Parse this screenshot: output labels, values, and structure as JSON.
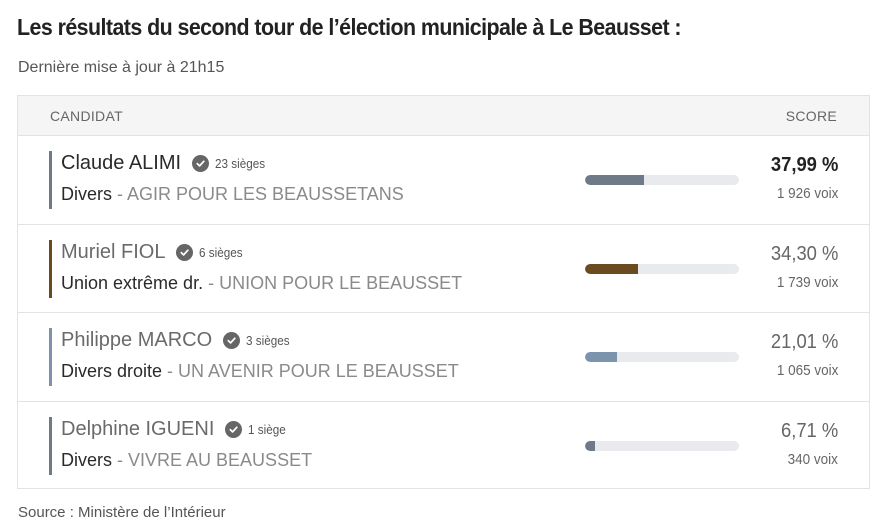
{
  "header": {
    "title": "Les résultats du second tour de l’élection municipale à Le Beausset :",
    "subtitle": "Dernière mise à jour à 21h15"
  },
  "table": {
    "col_candidat": "CANDIDAT",
    "col_score": "SCORE",
    "rows": [
      {
        "name": "Claude ALIMI",
        "sieges": "23 sièges",
        "nuance": "Divers",
        "liste": " - AGIR POUR LES BEAUSSETANS",
        "score": "37,99 %",
        "voix": "1 926 voix",
        "score_value": 37.99,
        "color": "#6e7a87"
      },
      {
        "name": "Muriel FIOL",
        "sieges": "6 sièges",
        "nuance": "Union extrême dr.",
        "liste": " - UNION POUR LE BEAUSSET",
        "score": "34,30 %",
        "voix": "1 739 voix",
        "score_value": 34.3,
        "color": "#6b4a1f"
      },
      {
        "name": "Philippe MARCO",
        "sieges": "3 sièges",
        "nuance": "Divers droite",
        "liste": " - UN AVENIR POUR LE BEAUSSET",
        "score": "21,01 %",
        "voix": "1 065 voix",
        "score_value": 21.01,
        "color": "#7b93ad"
      },
      {
        "name": "Delphine IGUENI",
        "sieges": "1 siège",
        "nuance": "Divers",
        "liste": " - VIVRE AU BEAUSSET",
        "score": "6,71 %",
        "voix": "340 voix",
        "score_value": 6.71,
        "color": "#6e7a87"
      }
    ]
  },
  "footer": {
    "source": "Source : Ministère de l’Intérieur"
  },
  "icons": {
    "elected": "check-circle-icon"
  }
}
